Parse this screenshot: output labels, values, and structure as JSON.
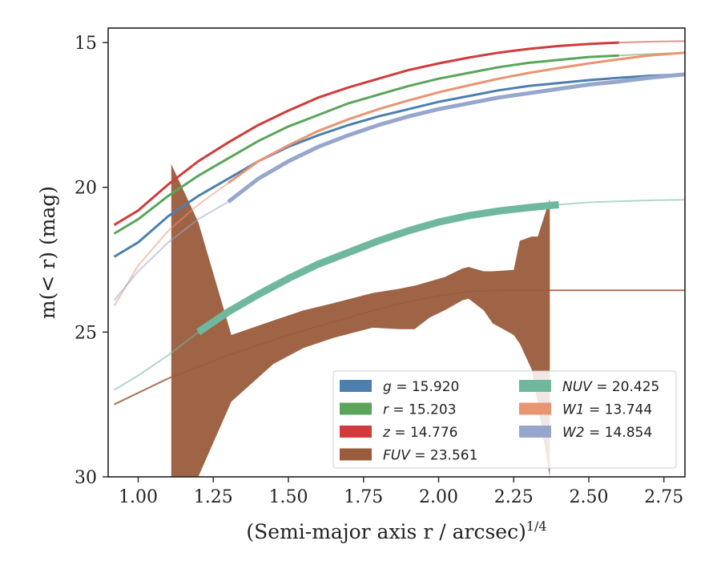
{
  "chart_data": {
    "type": "line",
    "title": "",
    "xlabel": "(Semi-major axis r / arcsec)",
    "xlabel_sup": "1/4",
    "ylabel": "m(< r) (mag)",
    "xlim": [
      0.9,
      2.82
    ],
    "ylim": [
      30,
      14.5
    ],
    "y_inverted": true,
    "grid": false,
    "legend_position": "lower-right",
    "xticks": [
      "1.00",
      "1.25",
      "1.50",
      "1.75",
      "2.00",
      "2.25",
      "2.50",
      "2.75"
    ],
    "yticks": [
      "15",
      "20",
      "25",
      "30"
    ],
    "series": [
      {
        "name": "g = 15.920",
        "color": "#4c7fae",
        "x": [
          0.92,
          1.0,
          1.1,
          1.2,
          1.3,
          1.4,
          1.5,
          1.6,
          1.7,
          1.8,
          1.9,
          2.0,
          2.1,
          2.2,
          2.3,
          2.4,
          2.5,
          2.6,
          2.7,
          2.82
        ],
        "y": [
          22.4,
          21.9,
          21.0,
          20.3,
          19.7,
          19.1,
          18.6,
          18.2,
          17.85,
          17.55,
          17.3,
          17.05,
          16.85,
          16.65,
          16.5,
          16.4,
          16.3,
          16.22,
          16.15,
          16.1
        ],
        "solid_until": 2.82
      },
      {
        "name": "r = 15.203",
        "color": "#5aa55a",
        "x": [
          0.92,
          1.0,
          1.1,
          1.2,
          1.3,
          1.4,
          1.5,
          1.6,
          1.7,
          1.8,
          1.9,
          2.0,
          2.1,
          2.2,
          2.3,
          2.4,
          2.5,
          2.6,
          2.7,
          2.82
        ],
        "y": [
          21.6,
          21.1,
          20.3,
          19.6,
          19.0,
          18.4,
          17.9,
          17.5,
          17.1,
          16.8,
          16.5,
          16.25,
          16.05,
          15.85,
          15.7,
          15.6,
          15.5,
          15.45,
          15.4,
          15.35
        ],
        "solid_until": 2.6
      },
      {
        "name": "z = 14.776",
        "color": "#d13b3b",
        "x": [
          0.92,
          1.0,
          1.1,
          1.2,
          1.3,
          1.4,
          1.5,
          1.6,
          1.7,
          1.8,
          1.9,
          2.0,
          2.1,
          2.2,
          2.3,
          2.4,
          2.5,
          2.6,
          2.7,
          2.82
        ],
        "y": [
          21.3,
          20.8,
          19.9,
          19.1,
          18.45,
          17.85,
          17.35,
          16.9,
          16.55,
          16.25,
          15.95,
          15.72,
          15.52,
          15.35,
          15.22,
          15.12,
          15.05,
          15.0,
          14.97,
          14.95
        ],
        "solid_until": 2.63
      },
      {
        "name": "FUV = 23.561",
        "color": "#9a5c3c",
        "x": [
          0.92,
          1.0,
          1.1,
          1.2,
          1.3,
          1.4,
          1.5,
          1.6,
          1.7,
          1.8,
          1.9,
          2.0,
          2.1,
          2.2,
          2.3,
          2.4,
          2.5,
          2.6,
          2.7,
          2.82
        ],
        "y": [
          27.5,
          27.1,
          26.6,
          26.2,
          25.8,
          25.45,
          25.1,
          24.8,
          24.5,
          24.2,
          23.95,
          23.75,
          23.6,
          23.56,
          23.56,
          23.56,
          23.56,
          23.56,
          23.56,
          23.56
        ],
        "band_x": [
          1.11,
          1.2,
          1.31,
          1.45,
          1.55,
          1.65,
          1.78,
          1.87,
          1.92,
          1.97,
          2.02,
          2.08,
          2.1,
          2.15,
          2.18,
          2.25,
          2.27,
          2.31,
          2.33,
          2.37
        ],
        "band_upper": [
          19.2,
          21.2,
          25.1,
          24.6,
          24.25,
          24.0,
          23.65,
          23.5,
          23.4,
          23.25,
          23.1,
          22.8,
          22.75,
          22.9,
          22.9,
          22.85,
          21.85,
          21.7,
          21.7,
          20.4
        ],
        "band_lower": [
          30.0,
          30.0,
          27.4,
          26.1,
          25.55,
          25.2,
          24.85,
          24.9,
          24.9,
          24.5,
          24.25,
          23.9,
          23.85,
          24.25,
          24.7,
          25.1,
          25.4,
          26.3,
          27.5,
          30.0
        ]
      },
      {
        "name": "NUV = 20.425",
        "color": "#6fb89e",
        "x": [
          0.92,
          1.0,
          1.1,
          1.2,
          1.3,
          1.4,
          1.5,
          1.6,
          1.7,
          1.8,
          1.9,
          2.0,
          2.1,
          2.2,
          2.3,
          2.4,
          2.5,
          2.6,
          2.7,
          2.82
        ],
        "y": [
          27.0,
          26.5,
          25.8,
          25.0,
          24.3,
          23.7,
          23.15,
          22.65,
          22.25,
          21.85,
          21.5,
          21.2,
          20.98,
          20.82,
          20.7,
          20.6,
          20.52,
          20.48,
          20.45,
          20.43
        ],
        "solid_from": 1.11,
        "solid_until": 2.47
      },
      {
        "name": "W1 = 13.744",
        "color": "#e99472",
        "x": [
          0.92,
          1.0,
          1.1,
          1.2,
          1.3,
          1.4,
          1.5,
          1.6,
          1.7,
          1.8,
          1.9,
          2.0,
          2.1,
          2.2,
          2.3,
          2.4,
          2.5,
          2.6,
          2.7,
          2.82
        ],
        "y": [
          24.1,
          22.7,
          21.5,
          20.6,
          19.85,
          19.1,
          18.55,
          18.05,
          17.65,
          17.3,
          17.0,
          16.72,
          16.48,
          16.25,
          16.05,
          15.88,
          15.72,
          15.58,
          15.45,
          15.35
        ],
        "solid_from": 1.29,
        "solid_until": 2.82
      },
      {
        "name": "W2 = 14.854",
        "color": "#97a6cc",
        "x": [
          0.92,
          1.0,
          1.1,
          1.2,
          1.3,
          1.4,
          1.5,
          1.6,
          1.7,
          1.8,
          1.9,
          2.0,
          2.1,
          2.2,
          2.3,
          2.4,
          2.5,
          2.6,
          2.7,
          2.82
        ],
        "y": [
          23.9,
          22.9,
          21.9,
          21.1,
          20.5,
          19.7,
          19.1,
          18.6,
          18.2,
          17.85,
          17.55,
          17.3,
          17.1,
          16.9,
          16.75,
          16.6,
          16.45,
          16.35,
          16.22,
          16.1
        ],
        "solid_from": 1.29,
        "solid_until": 2.82
      }
    ],
    "legend": {
      "columns": [
        [
          "g = 15.920",
          "r = 15.203",
          "z = 14.776",
          "FUV = 23.561"
        ],
        [
          "NUV = 20.425",
          "W1 = 13.744",
          "W2 = 14.854"
        ]
      ]
    }
  }
}
